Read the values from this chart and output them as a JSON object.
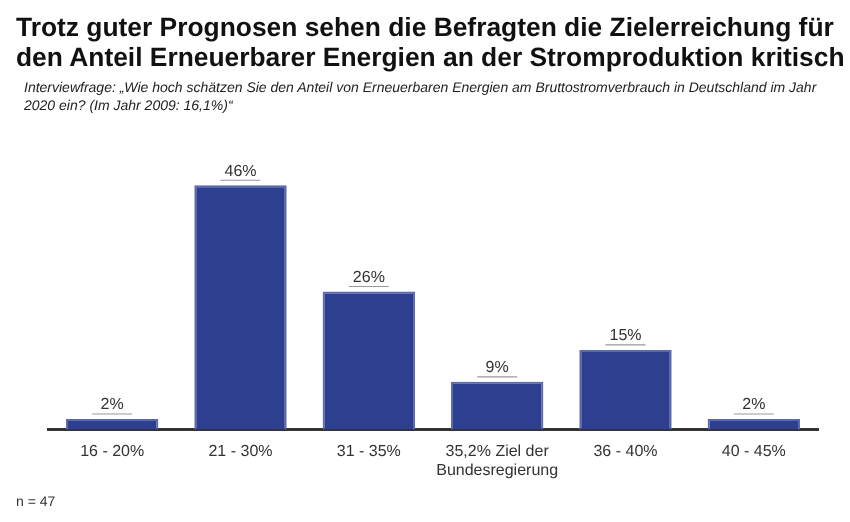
{
  "chart_data": {
    "type": "bar",
    "title": "Trotz guter Prognosen sehen die Befragten die Zielerreichung für den Anteil Erneuerbarer Energien an der Stromproduktion kritisch",
    "subtitle": "Interviewfrage: „Wie hoch schätzen Sie den Anteil von Erneuerbaren Energien am Bruttostromverbrauch in Deutschland im Jahr 2020 ein? (Im Jahr 2009: 16,1%)“",
    "categories": [
      "16 - 20%",
      "21 - 30%",
      "31 - 35%",
      "35,2% Ziel der Bundesregierung",
      "36 - 40%",
      "40 - 45%"
    ],
    "values": [
      2,
      46,
      26,
      9,
      15,
      2
    ],
    "value_labels": [
      "2%",
      "46%",
      "26%",
      "9%",
      "15%",
      "2%"
    ],
    "color": "#2e3f8f",
    "tick_labels": "x",
    "grid": false,
    "legend": false,
    "annotations": [
      "n = 47"
    ]
  }
}
